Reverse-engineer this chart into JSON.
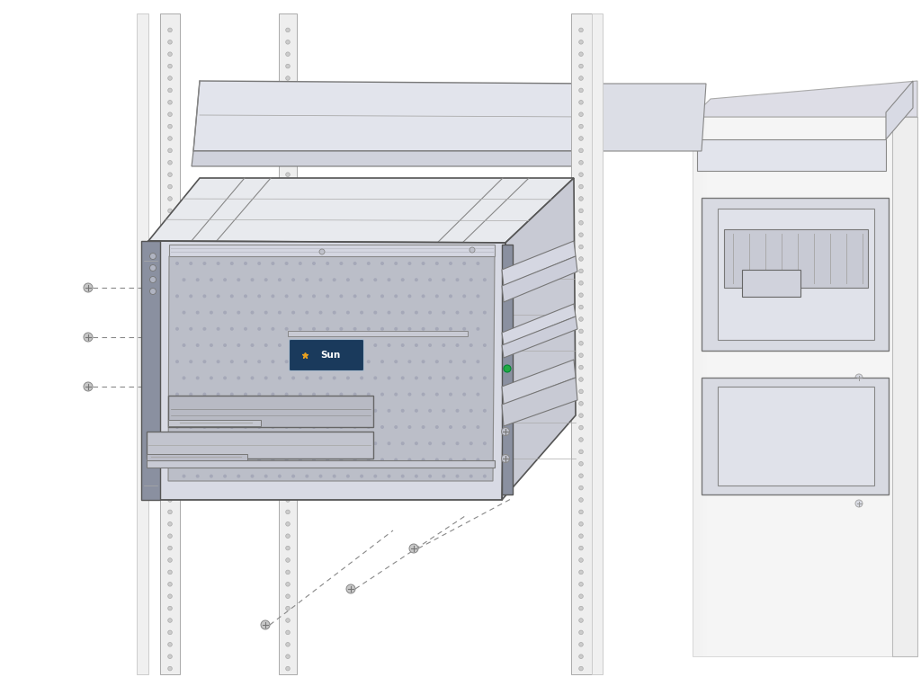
{
  "bg_color": "#ffffff",
  "line_color": "#555555",
  "rack_fill": "#f0f0f0",
  "rack_post_fill": "#ebebeb",
  "server_top_fill": "#e8eaee",
  "server_front_fill": "#d8dae4",
  "server_side_fill": "#c8cad4",
  "mesh_fill": "#bbbec8",
  "mesh_dot": "#a8aab8",
  "bracket_fill": "#8a90a0",
  "sun_badge_color": "#1a3a5c",
  "green_led": "#22aa44",
  "dashed_color": "#888888",
  "screw_color": "#999999",
  "rail_fill": "#d0d2dc",
  "right_panel_fill": "#f2f2f2",
  "right_panel_rail_fill": "#d8dae2",
  "figsize": [
    10.24,
    7.63
  ],
  "dpi": 100,
  "sun_text": "Sun"
}
